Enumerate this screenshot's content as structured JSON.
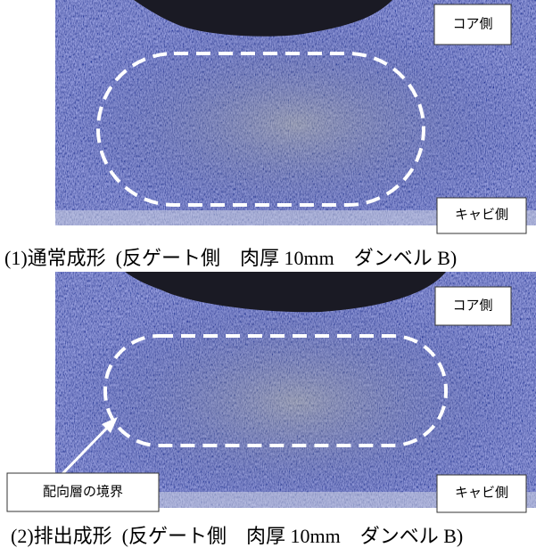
{
  "panels": [
    {
      "core_label": "コア側",
      "cavity_label": "キャビ側",
      "caption": "(1)通常成形  (反ゲート側　肉厚 10mm　ダンベル B)"
    },
    {
      "core_label": "コア側",
      "cavity_label": "キャビ側",
      "annotation": "配向層の境界",
      "caption": "(2)排出成形  (反ゲート側　肉厚 10mm　ダンベル B)"
    }
  ]
}
